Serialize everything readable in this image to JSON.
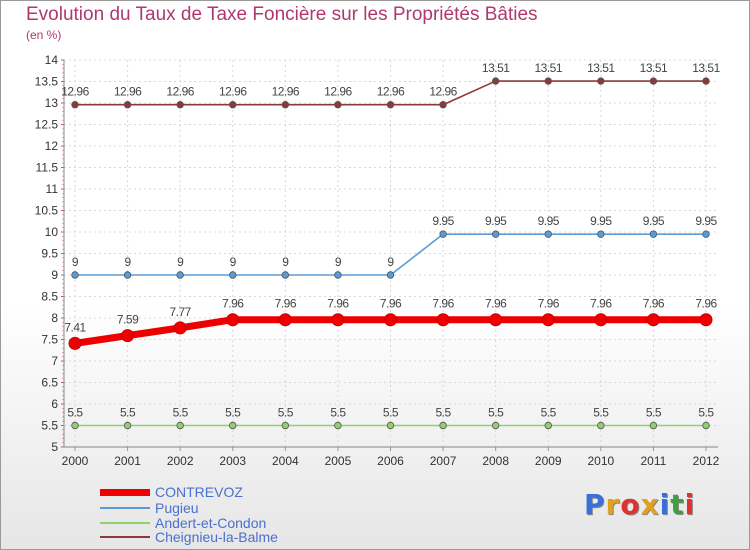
{
  "title": "Evolution du Taux de Taxe Foncière sur les Propriétés Bâties",
  "subtitle": "(en %)",
  "logo": {
    "text": "Proxiti",
    "colors": [
      "#3b6fd8",
      "#e0a020",
      "#e03030",
      "#e0a020",
      "#3b6fd8",
      "#40a040",
      "#e03030"
    ]
  },
  "chart_data": {
    "type": "line",
    "title": "Evolution du Taux de Taxe Foncière sur les Propriétés Bâties",
    "ylabel": "(en %)",
    "xlabel": "",
    "ylim": [
      5,
      14
    ],
    "yticks": [
      "5",
      "5.5",
      "6",
      "6.5",
      "7",
      "7.5",
      "8",
      "8.5",
      "9",
      "9.5",
      "10",
      "10.5",
      "11",
      "11.5",
      "12",
      "12.5",
      "13",
      "13.5",
      "14"
    ],
    "x": [
      "2000",
      "2001",
      "2002",
      "2003",
      "2004",
      "2005",
      "2006",
      "2007",
      "2008",
      "2009",
      "2010",
      "2011",
      "2012"
    ],
    "grid": true,
    "legend_position": "bottom-left",
    "series": [
      {
        "name": "CONTREVOZ",
        "color": "#ee0000",
        "values": [
          7.41,
          7.59,
          7.77,
          7.96,
          7.96,
          7.96,
          7.96,
          7.96,
          7.96,
          7.96,
          7.96,
          7.96,
          7.96
        ],
        "labels": [
          "7.41",
          "7.59",
          "7.77",
          "7.96",
          "7.96",
          "7.96",
          "7.96",
          "7.96",
          "7.96",
          "7.96",
          "7.96",
          "7.96",
          "7.96"
        ]
      },
      {
        "name": "Pugieu",
        "color": "#5b9bd5",
        "values": [
          9,
          9,
          9,
          9,
          9,
          9,
          9,
          9.95,
          9.95,
          9.95,
          9.95,
          9.95,
          9.95
        ],
        "labels": [
          "9",
          "9",
          "9",
          "9",
          "9",
          "9",
          "9",
          "9.95",
          "9.95",
          "9.95",
          "9.95",
          "9.95",
          "9.95"
        ]
      },
      {
        "name": "Andert-et-Condon",
        "color": "#8fd16a",
        "values": [
          5.5,
          5.5,
          5.5,
          5.5,
          5.5,
          5.5,
          5.5,
          5.5,
          5.5,
          5.5,
          5.5,
          5.5,
          5.5
        ],
        "labels": [
          "5.5",
          "5.5",
          "5.5",
          "5.5",
          "5.5",
          "5.5",
          "5.5",
          "5.5",
          "5.5",
          "5.5",
          "5.5",
          "5.5",
          "5.5"
        ]
      },
      {
        "name": "Cheignieu-la-Balme",
        "color": "#8b3a3a",
        "values": [
          12.96,
          12.96,
          12.96,
          12.96,
          12.96,
          12.96,
          12.96,
          12.96,
          13.51,
          13.51,
          13.51,
          13.51,
          13.51
        ],
        "labels": [
          "12.96",
          "12.96",
          "12.96",
          "12.96",
          "12.96",
          "12.96",
          "12.96",
          "12.96",
          "13.51",
          "13.51",
          "13.51",
          "13.51",
          "13.51"
        ]
      }
    ]
  }
}
